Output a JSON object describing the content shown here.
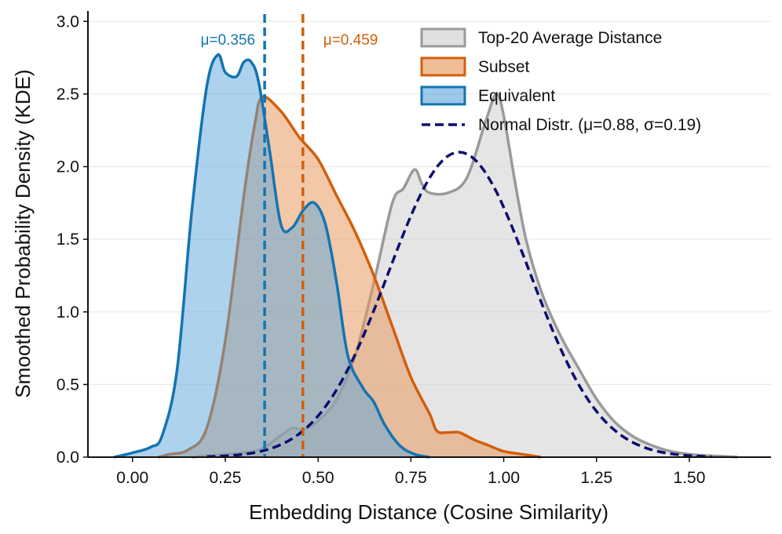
{
  "chart_data": {
    "type": "area",
    "title": "",
    "xlabel": "Embedding Distance (Cosine Similarity)",
    "ylabel": "Smoothed Probability Density (KDE)",
    "xlim": [
      -0.12,
      1.72
    ],
    "ylim": [
      0,
      3.05
    ],
    "xticks": [
      0.0,
      0.25,
      0.5,
      0.75,
      1.0,
      1.25,
      1.5
    ],
    "xtick_labels": [
      "0.00",
      "0.25",
      "0.50",
      "0.75",
      "1.00",
      "1.25",
      "1.50"
    ],
    "yticks": [
      0.0,
      0.5,
      1.0,
      1.5,
      2.0,
      2.5,
      3.0
    ],
    "ytick_labels": [
      "0.0",
      "0.5",
      "1.0",
      "1.5",
      "2.0",
      "2.5",
      "3.0"
    ],
    "grid": "horizontal",
    "legend_position": "top-right",
    "series": [
      {
        "name": "Top-20 Average Distance",
        "style": "filled-kde",
        "color": "#9a9a9a",
        "fill": "#cccccc",
        "fill_opacity": 0.5,
        "x": [
          0.16,
          0.2,
          0.25,
          0.3,
          0.35,
          0.4,
          0.43,
          0.46,
          0.5,
          0.55,
          0.6,
          0.65,
          0.7,
          0.73,
          0.76,
          0.78,
          0.8,
          0.85,
          0.9,
          0.95,
          0.98,
          1.0,
          1.03,
          1.06,
          1.1,
          1.15,
          1.2,
          1.25,
          1.3,
          1.35,
          1.4,
          1.45,
          1.5,
          1.55,
          1.6,
          1.63
        ],
        "y": [
          0.0,
          0.01,
          0.02,
          0.03,
          0.06,
          0.15,
          0.2,
          0.19,
          0.25,
          0.4,
          0.7,
          1.2,
          1.75,
          1.85,
          1.98,
          1.88,
          1.82,
          1.82,
          1.92,
          2.3,
          2.5,
          2.35,
          1.9,
          1.5,
          1.15,
          0.85,
          0.62,
          0.4,
          0.24,
          0.14,
          0.08,
          0.04,
          0.02,
          0.01,
          0.005,
          0.0
        ]
      },
      {
        "name": "Subset",
        "style": "filled-kde",
        "color": "#d35f0a",
        "fill": "#e89a62",
        "fill_opacity": 0.55,
        "x": [
          0.07,
          0.1,
          0.15,
          0.2,
          0.25,
          0.3,
          0.33,
          0.35,
          0.4,
          0.45,
          0.5,
          0.55,
          0.6,
          0.65,
          0.7,
          0.75,
          0.8,
          0.82,
          0.85,
          0.88,
          0.92,
          0.96,
          1.0,
          1.05,
          1.1
        ],
        "y": [
          0.0,
          0.02,
          0.05,
          0.2,
          0.8,
          1.8,
          2.3,
          2.48,
          2.38,
          2.2,
          2.05,
          1.8,
          1.55,
          1.25,
          0.9,
          0.55,
          0.3,
          0.18,
          0.17,
          0.17,
          0.12,
          0.08,
          0.04,
          0.02,
          0.0
        ]
      },
      {
        "name": "Equivalent",
        "style": "filled-kde",
        "color": "#1474b2",
        "fill": "#5aa5dc",
        "fill_opacity": 0.5,
        "x": [
          -0.05,
          0.0,
          0.05,
          0.08,
          0.12,
          0.16,
          0.2,
          0.23,
          0.25,
          0.28,
          0.3,
          0.32,
          0.34,
          0.37,
          0.4,
          0.43,
          0.46,
          0.49,
          0.52,
          0.55,
          0.58,
          0.62,
          0.65,
          0.68,
          0.72,
          0.76,
          0.8
        ],
        "y": [
          0.0,
          0.03,
          0.07,
          0.15,
          0.6,
          1.7,
          2.55,
          2.77,
          2.65,
          2.62,
          2.72,
          2.72,
          2.58,
          2.1,
          1.6,
          1.58,
          1.7,
          1.75,
          1.6,
          1.2,
          0.7,
          0.48,
          0.38,
          0.22,
          0.08,
          0.02,
          0.0
        ]
      },
      {
        "name": "Normal Distr. (μ=0.88, σ=0.19)",
        "style": "dashed-line",
        "color": "#0b0d6e",
        "mean": 0.88,
        "std": 0.19,
        "x_range": [
          0.2,
          1.56
        ]
      }
    ],
    "mean_lines": [
      {
        "series": "Equivalent",
        "value": 0.356,
        "label": "μ=0.356",
        "color": "#1474b2"
      },
      {
        "series": "Subset",
        "value": 0.459,
        "label": "μ=0.459",
        "color": "#d35f0a"
      }
    ]
  }
}
